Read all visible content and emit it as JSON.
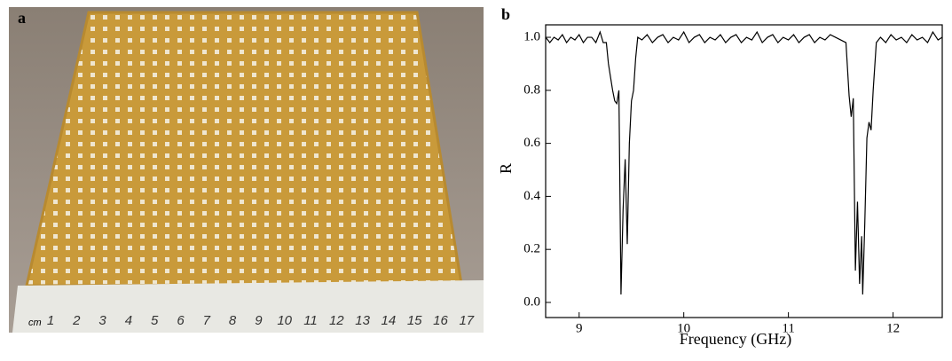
{
  "panel_labels": [
    "a",
    "b"
  ],
  "photo": {
    "ruler_unit": "cm",
    "ruler_numbers": [
      1,
      2,
      3,
      4,
      5,
      6,
      7,
      8,
      9,
      10,
      11,
      12,
      13,
      14,
      15,
      16,
      17
    ]
  },
  "chart_data": {
    "type": "line",
    "x_label": "Frequency (GHz)",
    "y_label": "R",
    "xlim": [
      8.68,
      12.47
    ],
    "ylim": [
      -0.057,
      1.047
    ],
    "xticks": [
      9,
      10,
      11,
      12
    ],
    "yticks": [
      {
        "value": 0,
        "label": "0.0"
      },
      {
        "value": 0.2,
        "label": "0.2"
      },
      {
        "value": 0.4,
        "label": "0.4"
      },
      {
        "value": 0.6,
        "label": "0.6"
      },
      {
        "value": 0.8,
        "label": "0.8"
      },
      {
        "value": 1.0,
        "label": "1.0"
      }
    ],
    "series": [
      {
        "color": "#000000",
        "x": [
          8.68,
          8.72,
          8.76,
          8.8,
          8.84,
          8.88,
          8.92,
          8.96,
          9.0,
          9.04,
          9.08,
          9.12,
          9.16,
          9.2,
          9.23,
          9.26,
          9.28,
          9.3,
          9.32,
          9.34,
          9.36,
          9.38,
          9.4,
          9.42,
          9.44,
          9.46,
          9.48,
          9.5,
          9.52,
          9.54,
          9.56,
          9.6,
          9.65,
          9.7,
          9.75,
          9.8,
          9.85,
          9.9,
          9.95,
          10.0,
          10.05,
          10.1,
          10.15,
          10.2,
          10.25,
          10.3,
          10.35,
          10.4,
          10.45,
          10.5,
          10.55,
          10.6,
          10.65,
          10.7,
          10.75,
          10.8,
          10.85,
          10.9,
          10.95,
          11.0,
          11.05,
          11.1,
          11.15,
          11.2,
          11.25,
          11.3,
          11.35,
          11.4,
          11.45,
          11.5,
          11.55,
          11.58,
          11.6,
          11.62,
          11.64,
          11.66,
          11.68,
          11.7,
          11.71,
          11.73,
          11.75,
          11.77,
          11.79,
          11.81,
          11.84,
          11.88,
          11.93,
          11.98,
          12.03,
          12.08,
          12.13,
          12.18,
          12.23,
          12.28,
          12.33,
          12.38,
          12.43,
          12.47
        ],
        "values": [
          1.0,
          0.98,
          1.0,
          0.99,
          1.01,
          0.98,
          1.0,
          0.99,
          1.01,
          0.98,
          1.0,
          1.0,
          0.98,
          1.02,
          0.98,
          0.98,
          0.9,
          0.85,
          0.8,
          0.76,
          0.75,
          0.8,
          0.03,
          0.35,
          0.54,
          0.22,
          0.6,
          0.76,
          0.8,
          0.92,
          1.0,
          0.99,
          1.01,
          0.98,
          1.0,
          1.01,
          0.98,
          1.0,
          0.99,
          1.02,
          0.98,
          1.0,
          1.01,
          0.98,
          1.0,
          0.99,
          1.01,
          0.98,
          1.0,
          1.01,
          0.98,
          1.0,
          0.99,
          1.02,
          0.98,
          1.0,
          1.01,
          0.98,
          1.0,
          0.99,
          1.01,
          0.98,
          1.0,
          1.01,
          0.98,
          1.0,
          0.99,
          1.01,
          1.0,
          0.99,
          0.98,
          0.78,
          0.7,
          0.77,
          0.12,
          0.38,
          0.07,
          0.25,
          0.03,
          0.3,
          0.62,
          0.68,
          0.65,
          0.8,
          0.98,
          1.0,
          0.98,
          1.01,
          0.99,
          1.0,
          0.98,
          1.01,
          0.99,
          1.0,
          0.98,
          1.02,
          0.99,
          1.0
        ]
      }
    ]
  }
}
